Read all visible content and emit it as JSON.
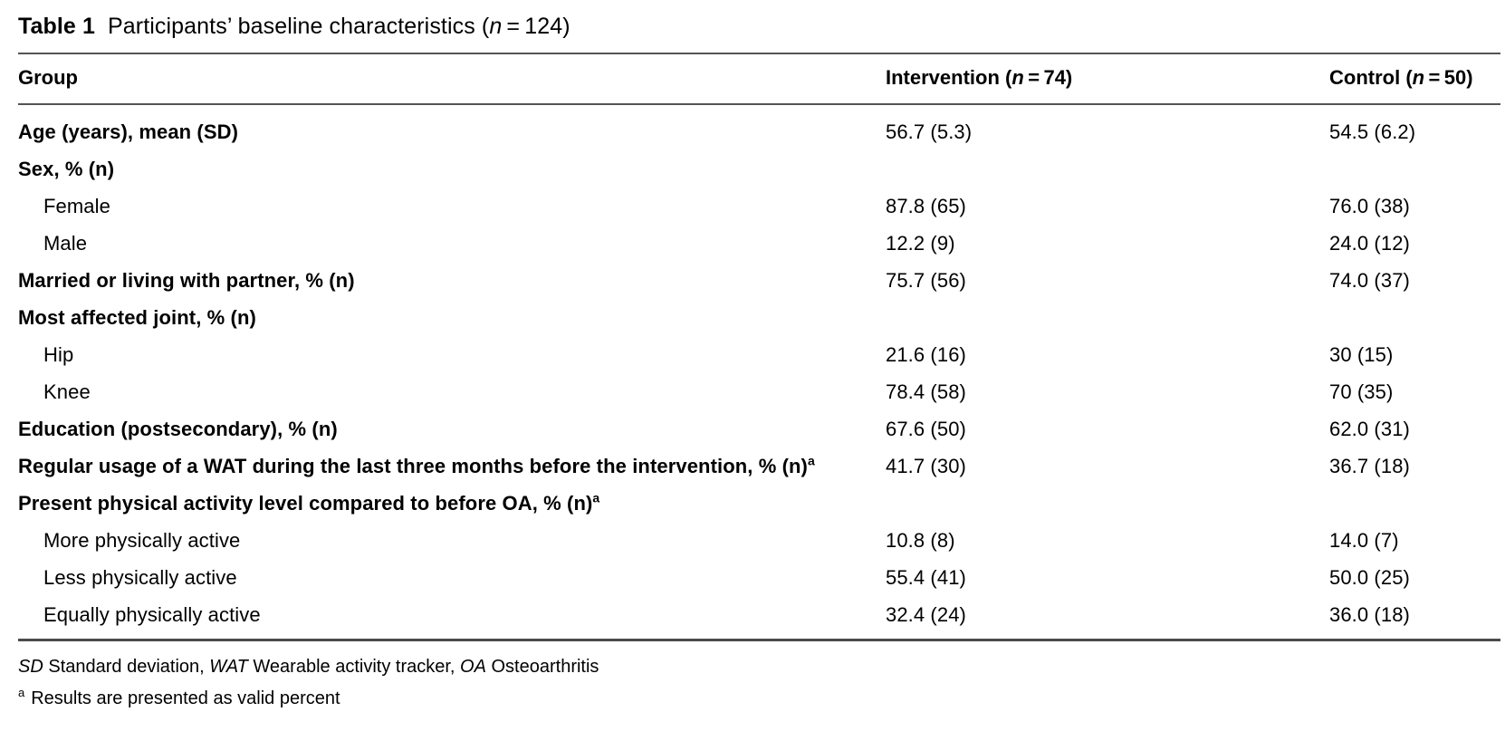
{
  "caption": {
    "label": "Table 1",
    "text": "Participants’ baseline characteristics (",
    "n": "n",
    "post": " = 124)"
  },
  "columns": {
    "group": "Group",
    "intervention": {
      "pre": "Intervention (",
      "n": "n",
      "post": " = 74)"
    },
    "control": {
      "pre": "Control (",
      "n": "n",
      "post": " = 50)"
    }
  },
  "rows": [
    {
      "label": "Age (years), mean (SD)",
      "bold": true,
      "indent": false,
      "sup": "",
      "intervention": "56.7 (5.3)",
      "control": "54.5 (6.2)"
    },
    {
      "label": "Sex, % (n)",
      "bold": true,
      "indent": false,
      "sup": "",
      "intervention": "",
      "control": ""
    },
    {
      "label": "Female",
      "bold": false,
      "indent": true,
      "sup": "",
      "intervention": "87.8 (65)",
      "control": "76.0 (38)"
    },
    {
      "label": "Male",
      "bold": false,
      "indent": true,
      "sup": "",
      "intervention": "12.2 (9)",
      "control": "24.0 (12)"
    },
    {
      "label": "Married or living with partner, % (n)",
      "bold": true,
      "indent": false,
      "sup": "",
      "intervention": "75.7 (56)",
      "control": "74.0 (37)"
    },
    {
      "label": "Most affected joint, % (n)",
      "bold": true,
      "indent": false,
      "sup": "",
      "intervention": "",
      "control": ""
    },
    {
      "label": "Hip",
      "bold": false,
      "indent": true,
      "sup": "",
      "intervention": "21.6 (16)",
      "control": "30 (15)"
    },
    {
      "label": "Knee",
      "bold": false,
      "indent": true,
      "sup": "",
      "intervention": "78.4 (58)",
      "control": "70 (35)"
    },
    {
      "label": "Education (postsecondary), % (n)",
      "bold": true,
      "indent": false,
      "sup": "",
      "intervention": "67.6 (50)",
      "control": "62.0 (31)"
    },
    {
      "label": "Regular usage of a WAT during the last three months before the intervention, % (n)",
      "bold": true,
      "indent": false,
      "sup": "a",
      "intervention": "41.7 (30)",
      "control": "36.7 (18)"
    },
    {
      "label": "Present physical activity level compared to before OA, % (n)",
      "bold": true,
      "indent": false,
      "sup": "a",
      "intervention": "",
      "control": ""
    },
    {
      "label": "More physically active",
      "bold": false,
      "indent": true,
      "sup": "",
      "intervention": "10.8 (8)",
      "control": "14.0 (7)"
    },
    {
      "label": "Less physically active",
      "bold": false,
      "indent": true,
      "sup": "",
      "intervention": "55.4 (41)",
      "control": "50.0 (25)"
    },
    {
      "label": "Equally physically active",
      "bold": false,
      "indent": true,
      "sup": "",
      "intervention": "32.4 (24)",
      "control": "36.0 (18)"
    }
  ],
  "footnotes": {
    "abbreviations": [
      {
        "term": "SD",
        "definition": " Standard deviation, "
      },
      {
        "term": "WAT",
        "definition": " Wearable activity tracker, "
      },
      {
        "term": "OA",
        "definition": " Osteoarthritis"
      }
    ],
    "note_a": {
      "marker": "a",
      "text": "Results are presented as valid percent"
    }
  },
  "colors": {
    "text": "#000000",
    "rule": "#545457"
  }
}
